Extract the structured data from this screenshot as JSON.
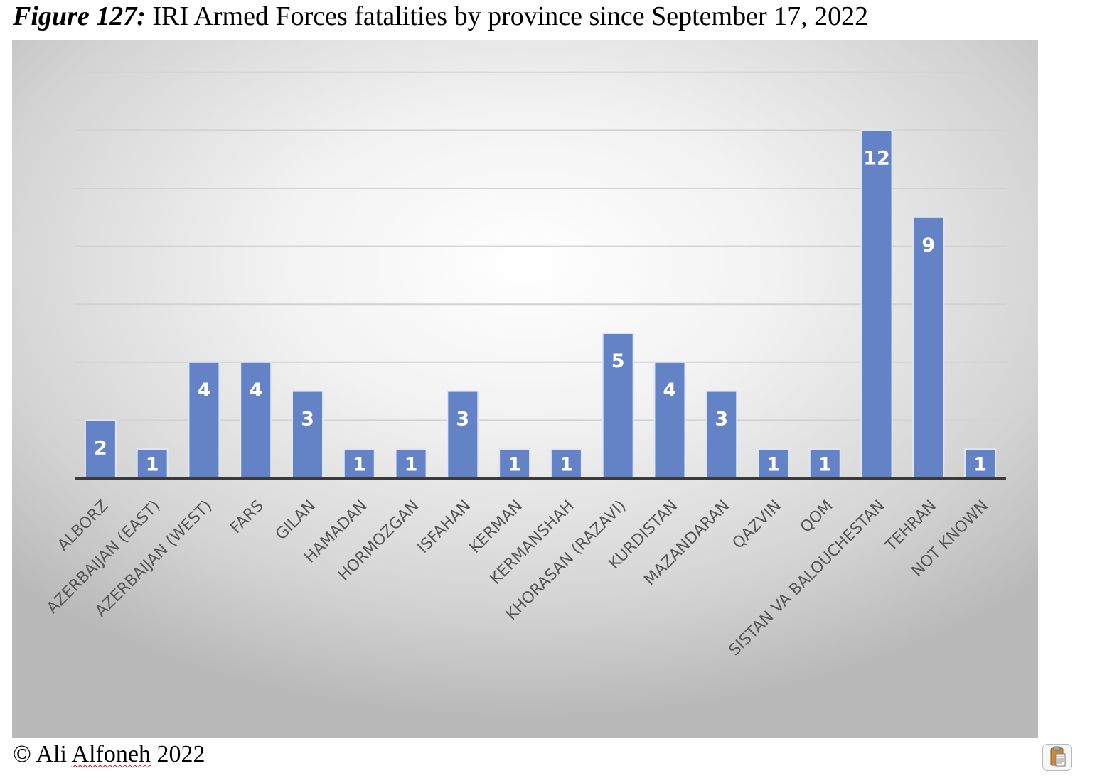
{
  "figure": {
    "label": "Figure 127:",
    "title": "IRI Armed Forces fatalities by province since September 17, 2022"
  },
  "footer": {
    "copyright_prefix": "© Ali ",
    "copyright_name": "Alfoneh",
    "copyright_year": " 2022"
  },
  "colors": {
    "bar": "#6483c7",
    "bar_edge": "#dfe6f5",
    "label": "#ffffff",
    "axis": "#3a3a3a",
    "grid": "#d2d2d2",
    "tick": "#555555"
  },
  "chart_data": {
    "type": "bar",
    "title": "IRI Armed Forces fatalities by province since September 17, 2022",
    "xlabel": "",
    "ylabel": "",
    "ylim": [
      0,
      14
    ],
    "grid": true,
    "legend": "none",
    "categories": [
      "ALBORZ",
      "AZERBAIJAN (EAST)",
      "AZERBAIJAN (WEST)",
      "FARS",
      "GILAN",
      "HAMADAN",
      "HORMOZGAN",
      "ISFAHAN",
      "KERMAN",
      "KERMANSHAH",
      "KHORASAN (RAZAVI)",
      "KURDISTAN",
      "MAZANDARAN",
      "QAZVIN",
      "QOM",
      "SISTAN VA BALOUCHESTAN",
      "TEHRAN",
      "NOT KNOWN"
    ],
    "values": [
      2,
      1,
      4,
      4,
      3,
      1,
      1,
      3,
      1,
      1,
      5,
      4,
      3,
      1,
      1,
      12,
      9,
      1
    ]
  }
}
